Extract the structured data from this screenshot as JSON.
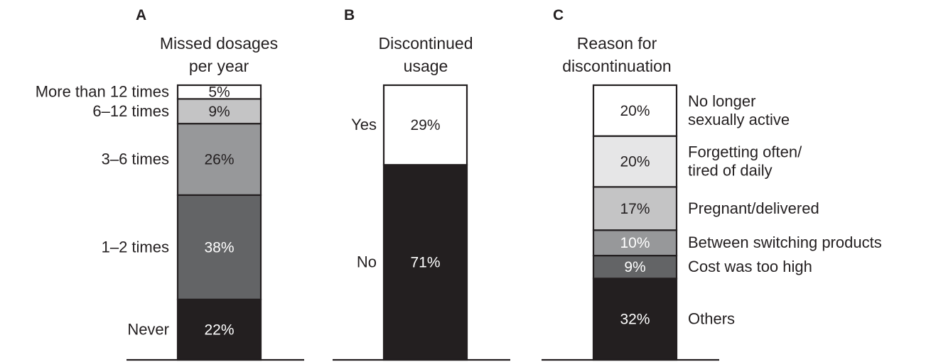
{
  "chart_data": [
    {
      "type": "bar",
      "stacked": true,
      "panel_label": "A",
      "title": [
        "Missed dosages",
        "per year"
      ],
      "categories": [
        "Never",
        "1–2 times",
        "3–6 times",
        "6–12 times",
        "More than 12 times"
      ],
      "values": [
        22,
        38,
        26,
        9,
        5
      ],
      "value_labels": [
        "22%",
        "38%",
        "26%",
        "9%",
        "5%"
      ],
      "unit": "%",
      "ylim": [
        0,
        100
      ],
      "grid": false,
      "legend": "left",
      "colors": [
        "#231f20",
        "#636466",
        "#97989a",
        "#c4c4c5",
        "#ffffff"
      ],
      "label_colors": [
        "#ffffff",
        "#ffffff",
        "#231f20",
        "#231f20",
        "#231f20"
      ]
    },
    {
      "type": "bar",
      "stacked": true,
      "panel_label": "B",
      "title": [
        "Discontinued",
        "usage"
      ],
      "categories": [
        "No",
        "Yes"
      ],
      "values": [
        71,
        29
      ],
      "value_labels": [
        "71%",
        "29%"
      ],
      "unit": "%",
      "ylim": [
        0,
        100
      ],
      "grid": false,
      "legend": "left",
      "colors": [
        "#231f20",
        "#ffffff"
      ],
      "label_colors": [
        "#ffffff",
        "#231f20"
      ]
    },
    {
      "type": "bar",
      "stacked": true,
      "panel_label": "C",
      "title": [
        "Reason for",
        "discontinuation"
      ],
      "categories": [
        [
          "Others"
        ],
        [
          "Cost was too high"
        ],
        [
          "Between switching products"
        ],
        [
          "Pregnant/delivered"
        ],
        [
          "Forgetting often/",
          "tired of daily"
        ],
        [
          "No longer",
          "sexually active"
        ]
      ],
      "values": [
        32,
        9,
        10,
        17,
        20,
        20
      ],
      "value_labels": [
        "32%",
        "9%",
        "10%",
        "17%",
        "20%",
        "20%"
      ],
      "unit": "%",
      "ylim": [
        0,
        108
      ],
      "grid": false,
      "legend": "right",
      "colors": [
        "#231f20",
        "#636466",
        "#97989a",
        "#c4c4c5",
        "#e6e6e7",
        "#ffffff"
      ],
      "label_colors": [
        "#ffffff",
        "#ffffff",
        "#ffffff",
        "#231f20",
        "#231f20",
        "#231f20"
      ]
    }
  ]
}
